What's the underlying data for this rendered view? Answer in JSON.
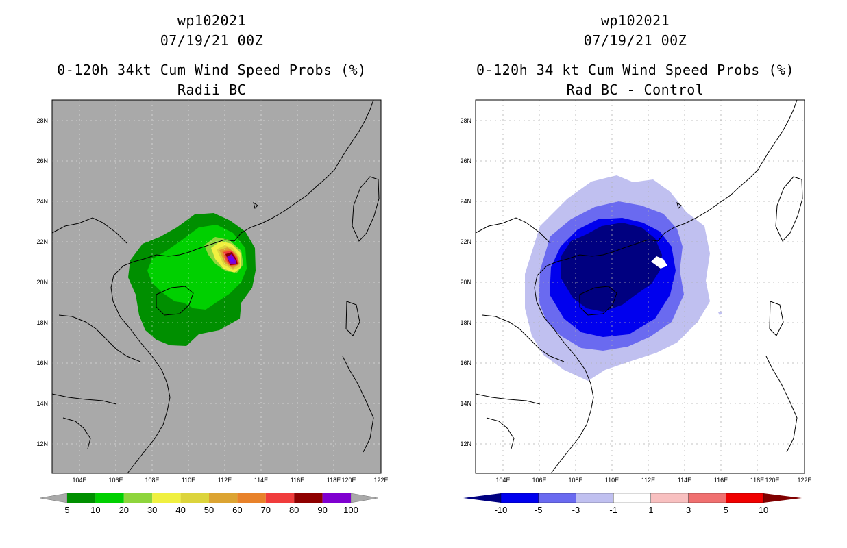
{
  "panels": [
    {
      "storm_id": "wp102021",
      "datetime": "07/19/21 00Z",
      "title": "0-120h 34kt Cum Wind Speed Probs (%)",
      "subtitle": "Radii BC",
      "background": "#a9a9a9",
      "colorbar": {
        "labels": [
          "5",
          "10",
          "20",
          "30",
          "40",
          "50",
          "60",
          "70",
          "80",
          "90",
          "100"
        ],
        "colors": [
          "#008f00",
          "#00d000",
          "#8ed53c",
          "#f0f040",
          "#dcd43c",
          "#dca432",
          "#e8822a",
          "#f03c3c",
          "#8f0000",
          "#7f00d0"
        ],
        "end_color": "#a9a9a9"
      }
    },
    {
      "storm_id": "wp102021",
      "datetime": "07/19/21 00Z",
      "title": "0-120h 34 kt Cum Wind Speed Probs (%)",
      "subtitle": "Rad BC - Control",
      "background": "#ffffff",
      "colorbar": {
        "labels": [
          "-10",
          "-5",
          "-3",
          "-1",
          "1",
          "3",
          "5",
          "10"
        ],
        "colors": [
          "#0000ee",
          "#6a6af0",
          "#c0c0f0",
          "#ffffff",
          "#f8c0c0",
          "#f07070",
          "#f00000"
        ],
        "left_end_color": "#000080",
        "right_end_color": "#800000"
      }
    }
  ],
  "axes": {
    "lon_ticks": [
      "104E",
      "106E",
      "108E",
      "110E",
      "112E",
      "114E",
      "116E",
      "118E",
      "120E",
      "122E"
    ],
    "lat_ticks": [
      "12N",
      "14N",
      "16N",
      "18N",
      "20N",
      "22N",
      "24N",
      "26N",
      "28N"
    ]
  }
}
